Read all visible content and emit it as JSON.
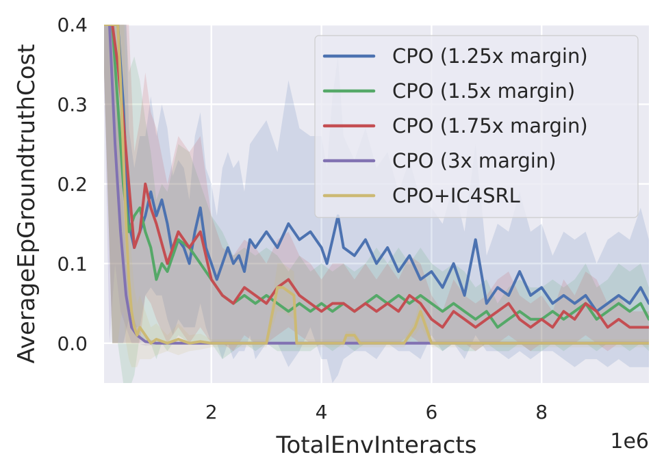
{
  "chart_data": {
    "type": "line",
    "xlabel": "TotalEnvInteracts",
    "ylabel": "AverageEpGroundtruthCost",
    "x_offset_text": "1e6",
    "xlim": [
      0.05,
      9.95
    ],
    "ylim": [
      -0.05,
      0.4
    ],
    "xticks": [
      2,
      4,
      6,
      8
    ],
    "xtick_labels": [
      "2",
      "4",
      "6",
      "8"
    ],
    "yticks": [
      0.0,
      0.1,
      0.2,
      0.3,
      0.4
    ],
    "ytick_labels": [
      "0.0",
      "0.1",
      "0.2",
      "0.3",
      "0.4"
    ],
    "grid": true,
    "legend_position": "top-right",
    "series": [
      {
        "name": "CPO (1.25x margin)",
        "color": "#4c72b0",
        "x": [
          0.05,
          0.2,
          0.3,
          0.4,
          0.5,
          0.6,
          0.7,
          0.8,
          0.9,
          1.0,
          1.1,
          1.2,
          1.3,
          1.4,
          1.5,
          1.6,
          1.7,
          1.8,
          1.9,
          2.0,
          2.1,
          2.2,
          2.3,
          2.4,
          2.5,
          2.6,
          2.7,
          2.8,
          3.0,
          3.2,
          3.4,
          3.6,
          3.8,
          4.0,
          4.1,
          4.2,
          4.3,
          4.4,
          4.6,
          4.8,
          5.0,
          5.2,
          5.4,
          5.6,
          5.8,
          6.0,
          6.2,
          6.4,
          6.6,
          6.8,
          7.0,
          7.2,
          7.4,
          7.6,
          7.8,
          8.0,
          8.2,
          8.4,
          8.6,
          8.8,
          9.0,
          9.2,
          9.4,
          9.6,
          9.8,
          9.95
        ],
        "y": [
          0.4,
          0.4,
          0.4,
          0.3,
          0.15,
          0.12,
          0.14,
          0.16,
          0.19,
          0.16,
          0.18,
          0.15,
          0.11,
          0.13,
          0.12,
          0.1,
          0.14,
          0.17,
          0.12,
          0.1,
          0.08,
          0.1,
          0.12,
          0.1,
          0.11,
          0.09,
          0.13,
          0.12,
          0.14,
          0.12,
          0.15,
          0.13,
          0.14,
          0.12,
          0.1,
          0.13,
          0.16,
          0.12,
          0.11,
          0.13,
          0.1,
          0.12,
          0.09,
          0.11,
          0.08,
          0.09,
          0.07,
          0.1,
          0.06,
          0.13,
          0.05,
          0.07,
          0.06,
          0.09,
          0.06,
          0.07,
          0.05,
          0.06,
          0.05,
          0.06,
          0.04,
          0.05,
          0.06,
          0.05,
          0.07,
          0.05
        ],
        "band": [
          0.06,
          0.4,
          0.4,
          0.3,
          0.12,
          0.1,
          0.12,
          0.1,
          0.12,
          0.1,
          0.12,
          0.12,
          0.1,
          0.1,
          0.1,
          0.08,
          0.12,
          0.12,
          0.1,
          0.1,
          0.08,
          0.12,
          0.12,
          0.12,
          0.12,
          0.1,
          0.12,
          0.14,
          0.14,
          0.12,
          0.18,
          0.14,
          0.12,
          0.14,
          0.12,
          0.18,
          0.2,
          0.14,
          0.12,
          0.14,
          0.12,
          0.12,
          0.1,
          0.12,
          0.1,
          0.08,
          0.08,
          0.1,
          0.08,
          0.12,
          0.06,
          0.08,
          0.08,
          0.1,
          0.08,
          0.08,
          0.06,
          0.08,
          0.08,
          0.08,
          0.06,
          0.08,
          0.08,
          0.08,
          0.1,
          0.08
        ]
      },
      {
        "name": "CPO (1.5x margin)",
        "color": "#55a868",
        "x": [
          0.05,
          0.2,
          0.3,
          0.4,
          0.5,
          0.6,
          0.7,
          0.8,
          0.9,
          1.0,
          1.1,
          1.2,
          1.4,
          1.6,
          1.8,
          2.0,
          2.2,
          2.4,
          2.6,
          2.8,
          3.0,
          3.2,
          3.4,
          3.6,
          3.8,
          4.0,
          4.2,
          4.4,
          4.6,
          4.8,
          5.0,
          5.2,
          5.4,
          5.6,
          5.8,
          6.0,
          6.2,
          6.4,
          6.6,
          6.8,
          7.0,
          7.2,
          7.4,
          7.6,
          7.8,
          8.0,
          8.2,
          8.4,
          8.6,
          8.8,
          9.0,
          9.2,
          9.4,
          9.6,
          9.8,
          9.95
        ],
        "y": [
          0.4,
          0.4,
          0.3,
          0.2,
          0.14,
          0.16,
          0.17,
          0.14,
          0.12,
          0.08,
          0.1,
          0.09,
          0.13,
          0.12,
          0.1,
          0.08,
          0.06,
          0.05,
          0.06,
          0.05,
          0.06,
          0.05,
          0.04,
          0.05,
          0.04,
          0.05,
          0.04,
          0.05,
          0.04,
          0.05,
          0.06,
          0.05,
          0.06,
          0.05,
          0.06,
          0.05,
          0.04,
          0.05,
          0.04,
          0.03,
          0.04,
          0.02,
          0.03,
          0.04,
          0.03,
          0.03,
          0.04,
          0.03,
          0.04,
          0.05,
          0.03,
          0.04,
          0.05,
          0.04,
          0.05,
          0.03
        ],
        "band": [
          0.06,
          0.4,
          0.3,
          0.25,
          0.2,
          0.2,
          0.16,
          0.14,
          0.12,
          0.1,
          0.1,
          0.1,
          0.12,
          0.12,
          0.1,
          0.08,
          0.08,
          0.06,
          0.06,
          0.06,
          0.06,
          0.06,
          0.05,
          0.06,
          0.05,
          0.05,
          0.05,
          0.05,
          0.05,
          0.05,
          0.06,
          0.05,
          0.06,
          0.05,
          0.06,
          0.05,
          0.05,
          0.05,
          0.05,
          0.04,
          0.04,
          0.03,
          0.04,
          0.04,
          0.04,
          0.04,
          0.04,
          0.04,
          0.04,
          0.05,
          0.04,
          0.04,
          0.05,
          0.05,
          0.05,
          0.04
        ]
      },
      {
        "name": "CPO (1.75x margin)",
        "color": "#c44e52",
        "x": [
          0.05,
          0.2,
          0.3,
          0.4,
          0.5,
          0.6,
          0.7,
          0.8,
          0.9,
          1.0,
          1.2,
          1.4,
          1.6,
          1.8,
          2.0,
          2.2,
          2.4,
          2.6,
          2.8,
          3.0,
          3.2,
          3.4,
          3.6,
          3.8,
          4.0,
          4.2,
          4.4,
          4.6,
          4.8,
          5.0,
          5.2,
          5.4,
          5.6,
          5.8,
          6.0,
          6.2,
          6.4,
          6.6,
          6.8,
          7.0,
          7.2,
          7.4,
          7.6,
          7.8,
          8.0,
          8.2,
          8.4,
          8.6,
          8.8,
          9.0,
          9.2,
          9.4,
          9.6,
          9.8,
          9.95
        ],
        "y": [
          0.4,
          0.4,
          0.35,
          0.28,
          0.2,
          0.12,
          0.14,
          0.2,
          0.17,
          0.15,
          0.1,
          0.14,
          0.12,
          0.14,
          0.08,
          0.06,
          0.05,
          0.07,
          0.06,
          0.05,
          0.07,
          0.08,
          0.06,
          0.05,
          0.04,
          0.05,
          0.05,
          0.04,
          0.05,
          0.04,
          0.05,
          0.04,
          0.06,
          0.05,
          0.03,
          0.02,
          0.04,
          0.03,
          0.02,
          0.03,
          0.04,
          0.05,
          0.03,
          0.02,
          0.03,
          0.02,
          0.04,
          0.03,
          0.05,
          0.04,
          0.02,
          0.03,
          0.02,
          0.02,
          0.02
        ],
        "band": [
          0.06,
          0.4,
          0.35,
          0.28,
          0.2,
          0.12,
          0.14,
          0.14,
          0.12,
          0.12,
          0.1,
          0.12,
          0.12,
          0.12,
          0.08,
          0.06,
          0.06,
          0.06,
          0.06,
          0.05,
          0.06,
          0.06,
          0.05,
          0.05,
          0.04,
          0.05,
          0.05,
          0.04,
          0.05,
          0.04,
          0.05,
          0.04,
          0.05,
          0.05,
          0.03,
          0.02,
          0.04,
          0.03,
          0.03,
          0.03,
          0.04,
          0.04,
          0.03,
          0.03,
          0.03,
          0.02,
          0.04,
          0.03,
          0.04,
          0.04,
          0.03,
          0.03,
          0.02,
          0.02,
          0.02
        ]
      },
      {
        "name": "CPO (3x margin)",
        "color": "#8172b2",
        "x": [
          0.05,
          0.15,
          0.25,
          0.35,
          0.45,
          0.55,
          0.65,
          0.8,
          1.0,
          1.5,
          2.0,
          3.0,
          4.0,
          5.0,
          6.0,
          7.0,
          8.0,
          9.0,
          9.95
        ],
        "y": [
          0.4,
          0.4,
          0.25,
          0.14,
          0.06,
          0.02,
          0.01,
          0.002,
          0.0,
          0.0,
          0.0,
          0.0,
          0.0,
          0.0,
          0.0,
          0.0,
          0.0,
          0.0,
          0.0
        ],
        "band": [
          0.06,
          0.4,
          0.15,
          0.1,
          0.04,
          0.02,
          0.01,
          0.005,
          0.002,
          0.002,
          0.002,
          0.002,
          0.002,
          0.002,
          0.002,
          0.002,
          0.002,
          0.002,
          0.002
        ]
      },
      {
        "name": "CPO+IC4SRL",
        "color": "#ccb974",
        "x": [
          0.05,
          0.2,
          0.3,
          0.35,
          0.4,
          0.45,
          0.5,
          0.55,
          0.6,
          0.65,
          0.7,
          0.8,
          0.9,
          1.0,
          1.2,
          1.4,
          1.6,
          1.8,
          2.0,
          2.5,
          3.0,
          3.2,
          3.25,
          3.3,
          3.5,
          3.55,
          3.6,
          4.0,
          4.4,
          4.45,
          4.5,
          4.6,
          4.7,
          5.0,
          5.5,
          5.7,
          5.8,
          5.9,
          6.0,
          6.5,
          7.0,
          8.0,
          9.0,
          9.95
        ],
        "y": [
          0.4,
          0.4,
          0.4,
          0.33,
          0.24,
          0.15,
          0.08,
          0.04,
          0.02,
          0.01,
          0.02,
          0.01,
          0.0,
          0.005,
          0.0,
          0.005,
          0.0,
          0.002,
          0.0,
          0.0,
          0.0,
          0.07,
          0.07,
          0.07,
          0.06,
          0.0,
          0.0,
          0.0,
          0.0,
          0.01,
          0.01,
          0.01,
          0.0,
          0.0,
          0.0,
          0.02,
          0.04,
          0.02,
          0.0,
          0.0,
          0.0,
          0.0,
          0.0,
          0.0
        ],
        "band": [
          0.06,
          0.4,
          0.4,
          0.3,
          0.2,
          0.15,
          0.1,
          0.07,
          0.05,
          0.04,
          0.04,
          0.03,
          0.02,
          0.02,
          0.01,
          0.02,
          0.01,
          0.01,
          0.005,
          0.005,
          0.005,
          0.03,
          0.03,
          0.03,
          0.03,
          0.005,
          0.005,
          0.005,
          0.005,
          0.005,
          0.005,
          0.005,
          0.005,
          0.005,
          0.005,
          0.01,
          0.02,
          0.01,
          0.005,
          0.005,
          0.005,
          0.005,
          0.005,
          0.005
        ]
      }
    ]
  }
}
